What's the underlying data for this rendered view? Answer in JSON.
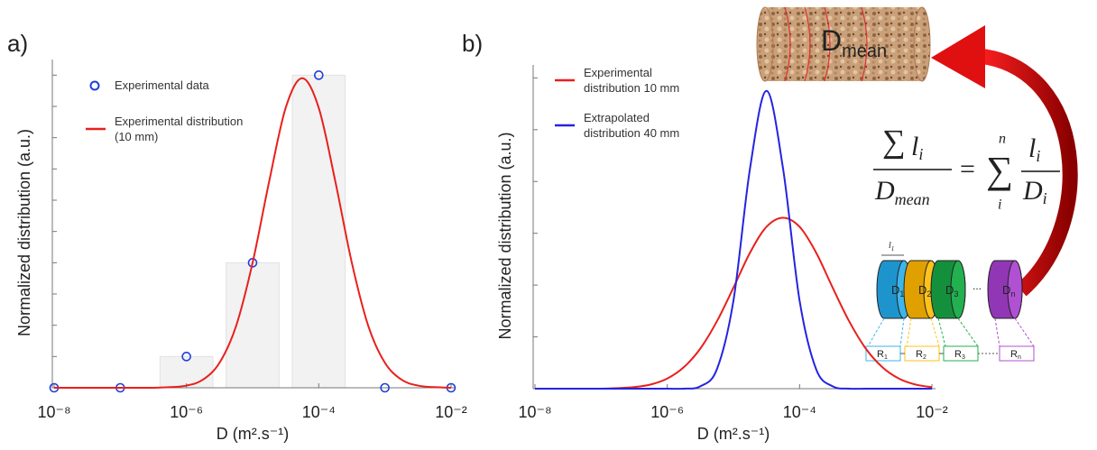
{
  "chart_data": [
    {
      "type": "line",
      "label": "a)",
      "xlabel": "D (m².s⁻¹)",
      "ylabel": "Normalized distribution (a.u.)",
      "xscale": "log",
      "xlim": [
        1e-08,
        0.01
      ],
      "ylim": [
        0,
        1.05
      ],
      "xticks": [
        {
          "value": 1e-08,
          "label": "10⁻⁸"
        },
        {
          "value": 1e-06,
          "label": "10⁻⁶"
        },
        {
          "value": 0.0001,
          "label": "10⁻⁴"
        },
        {
          "value": 0.01,
          "label": "10⁻²"
        }
      ],
      "yticks": [
        0,
        0.1,
        0.2,
        0.3,
        0.4,
        0.5,
        0.6,
        0.7,
        0.8,
        0.9,
        1.0
      ],
      "histogram": {
        "type": "bar",
        "color": "#f2f2f2",
        "x": [
          1e-06,
          1e-05,
          0.0001
        ],
        "values": [
          0.1,
          0.4,
          1.0
        ]
      },
      "series": [
        {
          "name": "Experimental data",
          "type": "scatter",
          "color": "#1f3fd8",
          "x": [
            1e-08,
            1e-07,
            1e-06,
            1e-05,
            0.0001,
            0.001,
            0.01
          ],
          "values": [
            0,
            0,
            0.1,
            0.4,
            1.0,
            0,
            0
          ]
        },
        {
          "name": "Experimental distribution (10 mm)",
          "type": "line",
          "color": "#e8201c",
          "x": [
            1e-08,
            1.78e-08,
            3.16e-08,
            5.62e-08,
            1e-07,
            1.78e-07,
            3.16e-07,
            5.62e-07,
            1e-06,
            1.78e-06,
            3.16e-06,
            5.62e-06,
            1e-05,
            1.78e-05,
            3.16e-05,
            5.62e-05,
            0.0001,
            0.000178,
            0.000316,
            0.000562,
            0.001,
            0.00178,
            0.00316,
            0.00562,
            0.01
          ],
          "values": [
            0,
            0,
            0,
            0,
            0,
            0,
            0,
            0.002,
            0.007,
            0.026,
            0.08,
            0.197,
            0.4,
            0.66,
            0.895,
            0.99,
            0.895,
            0.66,
            0.4,
            0.197,
            0.08,
            0.026,
            0.007,
            0.002,
            0
          ]
        }
      ]
    },
    {
      "type": "line",
      "label": "b)",
      "xlabel": "D (m².s⁻¹)",
      "ylabel": "Normalized distribution (a.u.)",
      "xscale": "log",
      "xlim": [
        1e-08,
        0.01
      ],
      "ylim": [
        0,
        1.25
      ],
      "xticks": [
        {
          "value": 1e-08,
          "label": "10⁻⁸"
        },
        {
          "value": 1e-06,
          "label": "10⁻⁶"
        },
        {
          "value": 0.0001,
          "label": "10⁻⁴"
        },
        {
          "value": 0.01,
          "label": "10⁻²"
        }
      ],
      "yticks": [
        0,
        0.2,
        0.4,
        0.6,
        0.8,
        1.0,
        1.2
      ],
      "series": [
        {
          "name": "Experimental distribution 10 mm",
          "type": "line",
          "color": "#e8201c",
          "x": [
            1e-08,
            1.78e-08,
            3.16e-08,
            5.62e-08,
            1e-07,
            1.78e-07,
            3.16e-07,
            5.62e-07,
            1e-06,
            1.78e-06,
            3.16e-06,
            5.62e-06,
            1e-05,
            1.78e-05,
            3.16e-05,
            5.62e-05,
            0.0001,
            0.000178,
            0.000316,
            0.000562,
            0.001,
            0.00178,
            0.00316,
            0.00562,
            0.01
          ],
          "values": [
            0,
            0,
            0,
            0,
            0,
            0.002,
            0.006,
            0.016,
            0.039,
            0.083,
            0.155,
            0.26,
            0.39,
            0.525,
            0.625,
            0.66,
            0.625,
            0.525,
            0.39,
            0.26,
            0.155,
            0.083,
            0.039,
            0.016,
            0.006
          ]
        },
        {
          "name": "Extrapolated distribution 40 mm",
          "type": "line",
          "color": "#2424e0",
          "x": [
            1e-08,
            1.78e-08,
            3.16e-08,
            5.62e-08,
            1e-07,
            1.78e-07,
            3.16e-07,
            5.62e-07,
            1e-06,
            1.78e-06,
            3.16e-06,
            5.62e-06,
            1e-05,
            1.78e-05,
            3.16e-05,
            5.62e-05,
            0.0001,
            0.000178,
            0.000316,
            0.000562,
            0.001,
            0.00178,
            0.00316,
            0.00562,
            0.01
          ],
          "values": [
            0,
            0,
            0,
            0,
            0,
            0,
            0,
            0,
            0,
            0,
            0.009,
            0.075,
            0.34,
            0.85,
            1.15,
            0.85,
            0.34,
            0.075,
            0.009,
            0,
            0,
            0,
            0,
            0,
            0
          ]
        }
      ]
    }
  ],
  "diagram": {
    "cylinder": {
      "main": "D",
      "sub": "mean"
    },
    "equation": {
      "sum": "∑",
      "num_var": "l",
      "num_sub": "i",
      "den_var": "D",
      "den_sub": "mean",
      "equals": "=",
      "rhs_sum": "∑",
      "upper": "n",
      "lower": "i",
      "rhs_num_var": "l",
      "rhs_num_sub": "i",
      "rhs_den_var": "D",
      "rhs_den_sub": "i"
    },
    "length": {
      "main": "l",
      "sub": "1"
    },
    "discs": [
      {
        "main": "D",
        "sub": "1"
      },
      {
        "main": "D",
        "sub": "2"
      },
      {
        "main": "D",
        "sub": "3"
      },
      {
        "main": "D",
        "sub": "n"
      }
    ],
    "ellipsis": "...",
    "resistors": [
      {
        "main": "R",
        "sub": "1"
      },
      {
        "main": "R",
        "sub": "2"
      },
      {
        "main": "R",
        "sub": "3"
      },
      {
        "main": "R",
        "sub": "n"
      }
    ]
  }
}
